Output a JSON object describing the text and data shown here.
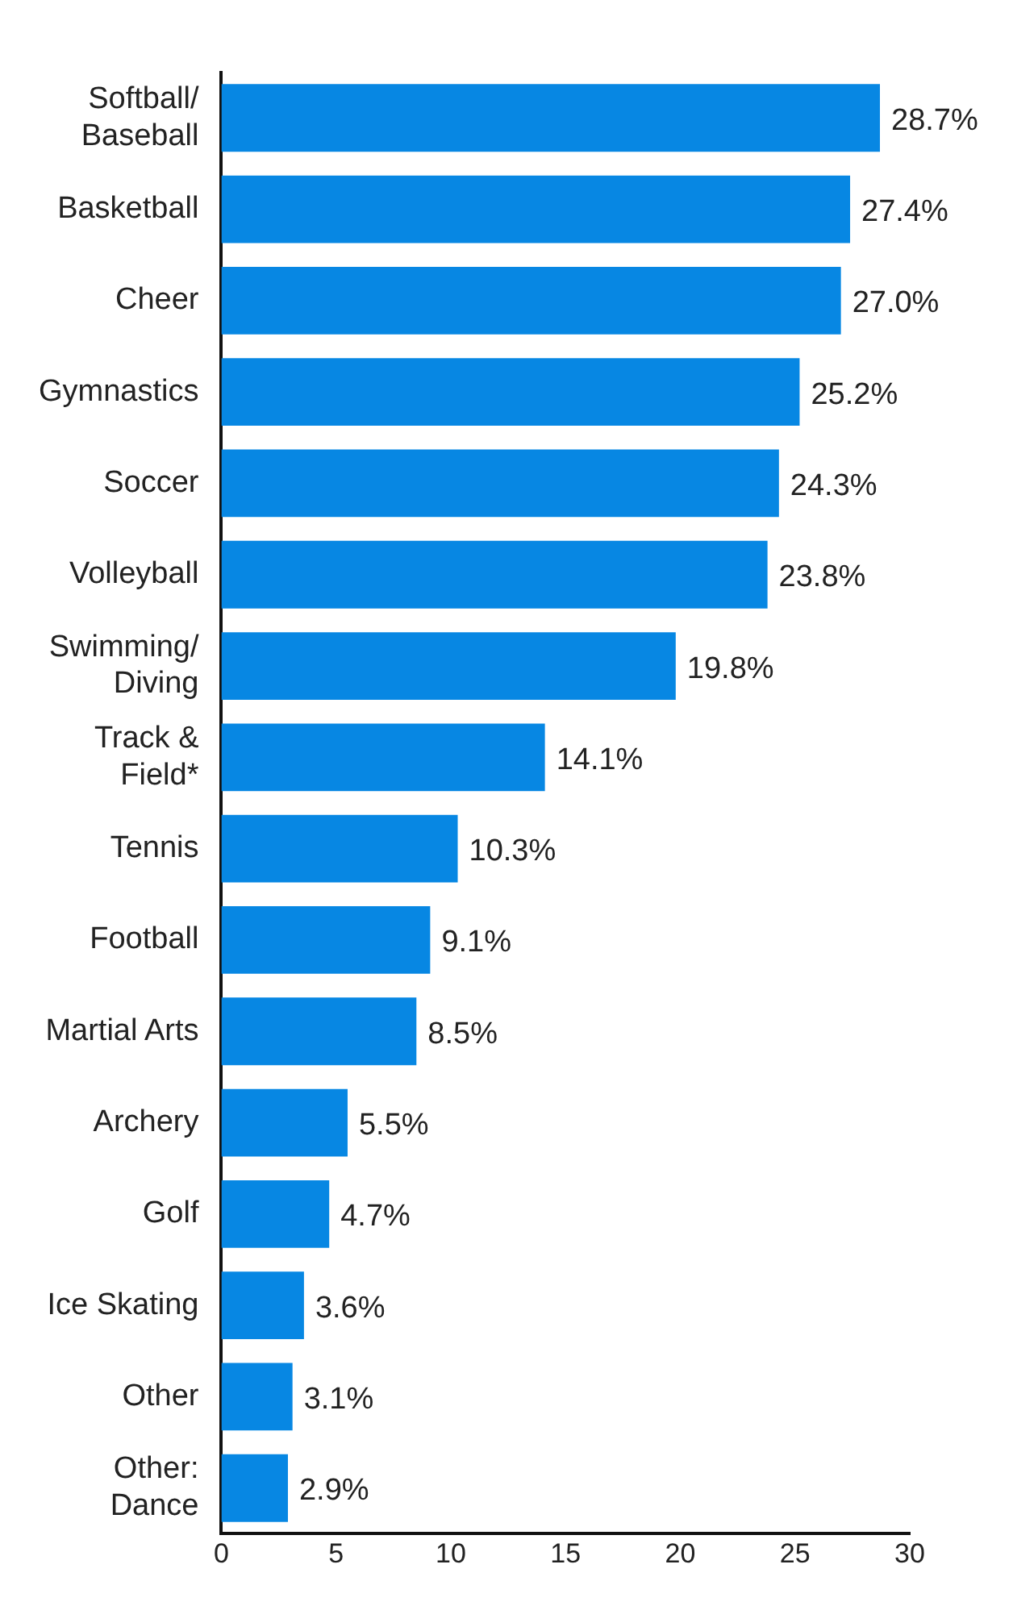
{
  "chart_data": {
    "type": "bar",
    "orientation": "horizontal",
    "categories": [
      "Softball/\nBaseball",
      "Basketball",
      "Cheer",
      "Gymnastics",
      "Soccer",
      "Volleyball",
      "Swimming/\nDiving",
      "Track &\nField*",
      "Tennis",
      "Football",
      "Martial Arts",
      "Archery",
      "Golf",
      "Ice Skating",
      "Other",
      "Other:\nDance"
    ],
    "values": [
      28.7,
      27.4,
      27.0,
      25.2,
      24.3,
      23.8,
      19.8,
      14.1,
      10.3,
      9.1,
      8.5,
      5.5,
      4.7,
      3.6,
      3.1,
      2.9
    ],
    "value_labels": [
      "28.7%",
      "27.4%",
      "27.0%",
      "25.2%",
      "24.3%",
      "23.8%",
      "19.8%",
      "14.1%",
      "10.3%",
      "9.1%",
      "8.5%",
      "5.5%",
      "4.7%",
      "3.6%",
      "3.1%",
      "2.9%"
    ],
    "color": "#0787e3",
    "xlim": [
      0,
      30
    ],
    "xticks": [
      0,
      5,
      10,
      15,
      20,
      25,
      30
    ],
    "grid": false,
    "legend": false
  }
}
